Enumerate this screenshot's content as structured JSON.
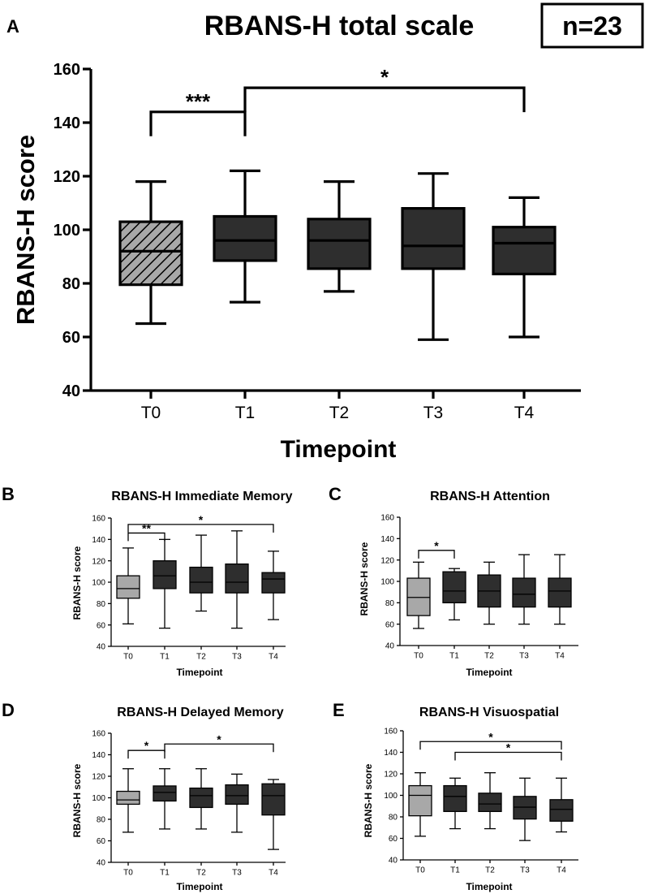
{
  "n_label": "n=23",
  "styles": {
    "baseline_fill": "#a8a8a8",
    "box_fill": "#2e2e2e",
    "hatch_fill": "#a8a8a8",
    "line_color": "#000000",
    "median_color": "#000000",
    "baseline_median_color": "#000000"
  },
  "chart_data": [
    {
      "panel": "A",
      "type": "box",
      "title": "RBANS-H total scale",
      "xlabel": "Timepoint",
      "ylabel": "RBANS-H score",
      "ylim": [
        40,
        160
      ],
      "yticks": [
        40,
        60,
        80,
        100,
        120,
        140,
        160
      ],
      "categories": [
        "T0",
        "T1",
        "T2",
        "T3",
        "T4"
      ],
      "boxes": [
        {
          "min": 65,
          "q1": 79.5,
          "median": 92,
          "q3": 103,
          "max": 118
        },
        {
          "min": 73,
          "q1": 88.5,
          "median": 96,
          "q3": 105,
          "max": 122
        },
        {
          "min": 77,
          "q1": 85.5,
          "median": 96,
          "q3": 104,
          "max": 118
        },
        {
          "min": 59,
          "q1": 85.5,
          "median": 94,
          "q3": 108,
          "max": 121
        },
        {
          "min": 60,
          "q1": 83.5,
          "median": 95,
          "q3": 101,
          "max": 112
        }
      ],
      "baseline_style": "hatched",
      "significance": [
        {
          "from": 0,
          "to": 1,
          "label": "***",
          "level": 144
        },
        {
          "from": 1,
          "to": 4,
          "label": "*",
          "level": 153
        }
      ]
    },
    {
      "panel": "B",
      "type": "box",
      "title": "RBANS-H Immediate Memory",
      "xlabel": "Timepoint",
      "ylabel": "RBANS-H score",
      "ylim": [
        40,
        160
      ],
      "yticks": [
        40,
        60,
        80,
        100,
        120,
        140,
        160
      ],
      "categories": [
        "T0",
        "T1",
        "T2",
        "T3",
        "T4"
      ],
      "boxes": [
        {
          "min": 61,
          "q1": 85,
          "median": 94,
          "q3": 106,
          "max": 132
        },
        {
          "min": 57,
          "q1": 94,
          "median": 106,
          "q3": 120,
          "max": 140
        },
        {
          "min": 73,
          "q1": 90,
          "median": 100,
          "q3": 114,
          "max": 144
        },
        {
          "min": 57,
          "q1": 90,
          "median": 100,
          "q3": 117,
          "max": 148
        },
        {
          "min": 65,
          "q1": 90,
          "median": 103,
          "q3": 109,
          "max": 129
        }
      ],
      "baseline_style": "light",
      "significance": [
        {
          "from": 0,
          "to": 1,
          "label": "**",
          "level": 146
        },
        {
          "from": 0,
          "to": 4,
          "label": "*",
          "level": 154
        }
      ]
    },
    {
      "panel": "C",
      "type": "box",
      "title": "RBANS-H Attention",
      "xlabel": "Timepoint",
      "ylabel": "RBANS-H score",
      "ylim": [
        40,
        160
      ],
      "yticks": [
        40,
        60,
        80,
        100,
        120,
        140,
        160
      ],
      "categories": [
        "T0",
        "T1",
        "T2",
        "T3",
        "T4"
      ],
      "boxes": [
        {
          "min": 56,
          "q1": 68,
          "median": 85,
          "q3": 103,
          "max": 118
        },
        {
          "min": 64,
          "q1": 80,
          "median": 91,
          "q3": 109,
          "max": 112
        },
        {
          "min": 60,
          "q1": 76,
          "median": 91,
          "q3": 106,
          "max": 118
        },
        {
          "min": 60,
          "q1": 76,
          "median": 88,
          "q3": 103,
          "max": 125
        },
        {
          "min": 60,
          "q1": 76,
          "median": 91,
          "q3": 103,
          "max": 125
        }
      ],
      "baseline_style": "light",
      "significance": [
        {
          "from": 0,
          "to": 1,
          "label": "*",
          "level": 129
        }
      ]
    },
    {
      "panel": "D",
      "type": "box",
      "title": "RBANS-H Delayed Memory",
      "xlabel": "Timepoint",
      "ylabel": "RBANS-H score",
      "ylim": [
        40,
        160
      ],
      "yticks": [
        40,
        60,
        80,
        100,
        120,
        140,
        160
      ],
      "categories": [
        "T0",
        "T1",
        "T2",
        "T3",
        "T4"
      ],
      "boxes": [
        {
          "min": 68,
          "q1": 94,
          "median": 98,
          "q3": 106,
          "max": 127
        },
        {
          "min": 71,
          "q1": 97,
          "median": 105,
          "q3": 111,
          "max": 127
        },
        {
          "min": 71,
          "q1": 91,
          "median": 102,
          "q3": 109,
          "max": 127
        },
        {
          "min": 68,
          "q1": 94,
          "median": 102,
          "q3": 112,
          "max": 122
        },
        {
          "min": 52,
          "q1": 84,
          "median": 102,
          "q3": 113,
          "max": 117
        }
      ],
      "baseline_style": "light",
      "significance": [
        {
          "from": 0,
          "to": 1,
          "label": "*",
          "level": 144
        },
        {
          "from": 1,
          "to": 4,
          "label": "*",
          "level": 150
        }
      ]
    },
    {
      "panel": "E",
      "type": "box",
      "title": "RBANS-H Visuospatial",
      "xlabel": "Timepoint",
      "ylabel": "RBANS-H score",
      "ylim": [
        40,
        160
      ],
      "yticks": [
        40,
        60,
        80,
        100,
        120,
        140,
        160
      ],
      "categories": [
        "T0",
        "T1",
        "T2",
        "T3",
        "T4"
      ],
      "boxes": [
        {
          "min": 62,
          "q1": 81,
          "median": 100,
          "q3": 109,
          "max": 121
        },
        {
          "min": 69,
          "q1": 85,
          "median": 99,
          "q3": 109,
          "max": 116
        },
        {
          "min": 69,
          "q1": 85,
          "median": 92,
          "q3": 102,
          "max": 121
        },
        {
          "min": 58,
          "q1": 78,
          "median": 89,
          "q3": 99,
          "max": 116
        },
        {
          "min": 66,
          "q1": 76,
          "median": 87,
          "q3": 96,
          "max": 116
        }
      ],
      "baseline_style": "light",
      "significance": [
        {
          "from": 0,
          "to": 4,
          "label": "*",
          "level": 150
        },
        {
          "from": 1,
          "to": 4,
          "label": "*",
          "level": 140
        }
      ]
    }
  ]
}
